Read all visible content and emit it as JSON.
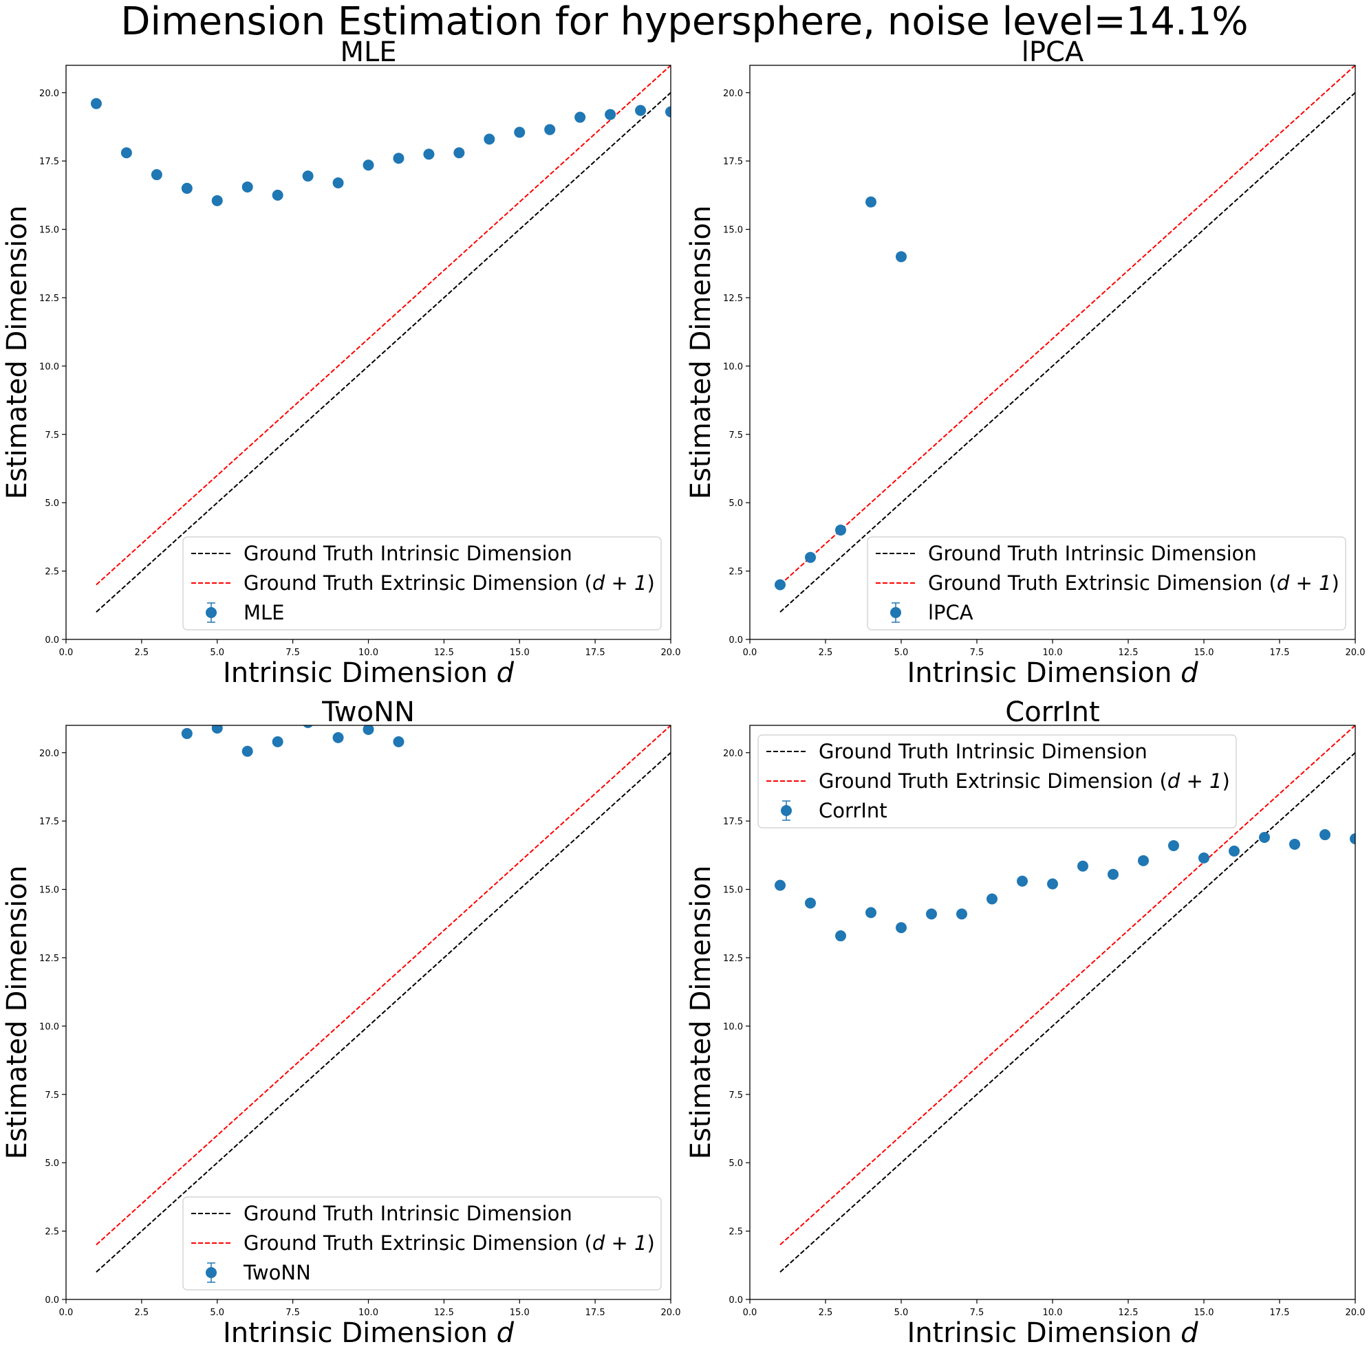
{
  "figure": {
    "suptitle": "Dimension Estimation for hypersphere, noise level=14.1%"
  },
  "colors": {
    "points": "#1f77b4",
    "intrinsic_line": "#000000",
    "extrinsic_line": "#ff0000",
    "axes": "#000000",
    "legend_border": "#cccccc"
  },
  "chart_data": [
    {
      "type": "scatter",
      "title": "MLE",
      "xlabel_main": "Intrinsic Dimension ",
      "xlabel_var": "d",
      "ylabel": "Estimated Dimension",
      "xlim": [
        0,
        20
      ],
      "ylim": [
        0,
        21
      ],
      "xticks": [
        "0.0",
        "2.5",
        "5.0",
        "7.5",
        "10.0",
        "12.5",
        "15.0",
        "17.5",
        "20.0"
      ],
      "yticks": [
        "0.0",
        "2.5",
        "5.0",
        "7.5",
        "10.0",
        "12.5",
        "15.0",
        "17.5",
        "20.0"
      ],
      "legend_position": "lower right",
      "legend": {
        "intrinsic": "Ground Truth Intrinsic Dimension",
        "extrinsic_main": "Ground Truth Extrinsic Dimension (",
        "extrinsic_math": "d + 1",
        "extrinsic_close": ")",
        "points": "MLE"
      },
      "points": {
        "x": [
          1,
          2,
          3,
          4,
          5,
          6,
          7,
          8,
          9,
          10,
          11,
          12,
          13,
          14,
          15,
          16,
          17,
          18,
          19,
          20
        ],
        "y": [
          19.6,
          17.8,
          17.0,
          16.5,
          16.05,
          16.55,
          16.25,
          16.95,
          16.7,
          17.35,
          17.6,
          17.75,
          17.8,
          18.3,
          18.55,
          18.65,
          19.1,
          19.2,
          19.35,
          19.3
        ]
      },
      "lines": [
        {
          "name": "intrinsic",
          "x": [
            1,
            20
          ],
          "y": [
            1,
            20
          ]
        },
        {
          "name": "extrinsic",
          "x": [
            1,
            20
          ],
          "y": [
            2,
            21
          ]
        }
      ]
    },
    {
      "type": "scatter",
      "title": "lPCA",
      "xlabel_main": "Intrinsic Dimension ",
      "xlabel_var": "d",
      "ylabel": "Estimated Dimension",
      "xlim": [
        0,
        20
      ],
      "ylim": [
        0,
        21
      ],
      "xticks": [
        "0.0",
        "2.5",
        "5.0",
        "7.5",
        "10.0",
        "12.5",
        "15.0",
        "17.5",
        "20.0"
      ],
      "yticks": [
        "0.0",
        "2.5",
        "5.0",
        "7.5",
        "10.0",
        "12.5",
        "15.0",
        "17.5",
        "20.0"
      ],
      "legend_position": "lower right",
      "legend": {
        "intrinsic": "Ground Truth Intrinsic Dimension",
        "extrinsic_main": "Ground Truth Extrinsic Dimension (",
        "extrinsic_math": "d + 1",
        "extrinsic_close": ")",
        "points": "lPCA"
      },
      "points": {
        "x": [
          1,
          2,
          3,
          4,
          5
        ],
        "y": [
          2.0,
          3.0,
          4.0,
          16.0,
          14.0
        ]
      },
      "lines": [
        {
          "name": "intrinsic",
          "x": [
            1,
            20
          ],
          "y": [
            1,
            20
          ]
        },
        {
          "name": "extrinsic",
          "x": [
            1,
            20
          ],
          "y": [
            2,
            21
          ]
        }
      ]
    },
    {
      "type": "scatter",
      "title": "TwoNN",
      "xlabel_main": "Intrinsic Dimension ",
      "xlabel_var": "d",
      "ylabel": "Estimated Dimension",
      "xlim": [
        0,
        20
      ],
      "ylim": [
        0,
        21
      ],
      "xticks": [
        "0.0",
        "2.5",
        "5.0",
        "7.5",
        "10.0",
        "12.5",
        "15.0",
        "17.5",
        "20.0"
      ],
      "yticks": [
        "0.0",
        "2.5",
        "5.0",
        "7.5",
        "10.0",
        "12.5",
        "15.0",
        "17.5",
        "20.0"
      ],
      "legend_position": "lower right",
      "legend": {
        "intrinsic": "Ground Truth Intrinsic Dimension",
        "extrinsic_main": "Ground Truth Extrinsic Dimension (",
        "extrinsic_math": "d + 1",
        "extrinsic_close": ")",
        "points": "TwoNN"
      },
      "points": {
        "x": [
          4,
          5,
          6,
          7,
          8,
          9,
          10,
          11
        ],
        "y": [
          20.7,
          20.9,
          20.05,
          20.4,
          21.1,
          20.55,
          20.85,
          20.4
        ]
      },
      "lines": [
        {
          "name": "intrinsic",
          "x": [
            1,
            20
          ],
          "y": [
            1,
            20
          ]
        },
        {
          "name": "extrinsic",
          "x": [
            1,
            20
          ],
          "y": [
            2,
            21
          ]
        }
      ]
    },
    {
      "type": "scatter",
      "title": "CorrInt",
      "xlabel_main": "Intrinsic Dimension ",
      "xlabel_var": "d",
      "ylabel": "Estimated Dimension",
      "xlim": [
        0,
        20
      ],
      "ylim": [
        0,
        21
      ],
      "xticks": [
        "0.0",
        "2.5",
        "5.0",
        "7.5",
        "10.0",
        "12.5",
        "15.0",
        "17.5",
        "20.0"
      ],
      "yticks": [
        "0.0",
        "2.5",
        "5.0",
        "7.5",
        "10.0",
        "12.5",
        "15.0",
        "17.5",
        "20.0"
      ],
      "legend_position": "upper left",
      "legend": {
        "intrinsic": "Ground Truth Intrinsic Dimension",
        "extrinsic_main": "Ground Truth Extrinsic Dimension (",
        "extrinsic_math": "d + 1",
        "extrinsic_close": ")",
        "points": "CorrInt"
      },
      "points": {
        "x": [
          1,
          2,
          3,
          4,
          5,
          6,
          7,
          8,
          9,
          10,
          11,
          12,
          13,
          14,
          15,
          16,
          17,
          18,
          19,
          20
        ],
        "y": [
          15.15,
          14.5,
          13.3,
          14.15,
          13.6,
          14.1,
          14.1,
          14.65,
          15.3,
          15.2,
          15.85,
          15.55,
          16.05,
          16.6,
          16.15,
          16.4,
          16.9,
          16.65,
          17.0,
          16.85
        ]
      },
      "lines": [
        {
          "name": "intrinsic",
          "x": [
            1,
            20
          ],
          "y": [
            1,
            20
          ]
        },
        {
          "name": "extrinsic",
          "x": [
            1,
            20
          ],
          "y": [
            2,
            21
          ]
        }
      ]
    }
  ]
}
